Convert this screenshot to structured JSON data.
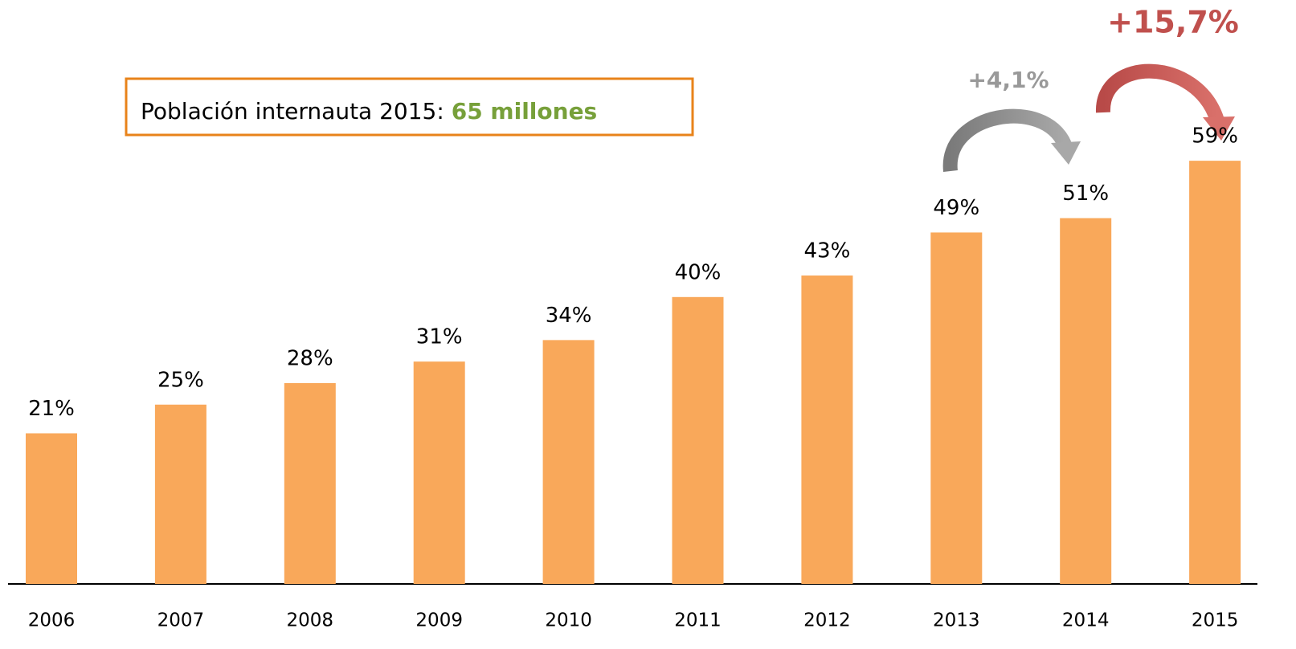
{
  "chart_data": {
    "type": "bar",
    "categories": [
      "2006",
      "2007",
      "2008",
      "2009",
      "2010",
      "2011",
      "2012",
      "2013",
      "2014",
      "2015"
    ],
    "values": [
      21,
      25,
      28,
      31,
      34,
      40,
      43,
      49,
      51,
      59
    ],
    "value_labels": [
      "21%",
      "25%",
      "28%",
      "31%",
      "34%",
      "40%",
      "43%",
      "49%",
      "51%",
      "59%"
    ],
    "color": "#f9a85a",
    "callout": {
      "label": "Población internauta 2015:",
      "value": "65 millones"
    },
    "growth_labels": [
      "+4,1%",
      "+15,7%"
    ]
  }
}
